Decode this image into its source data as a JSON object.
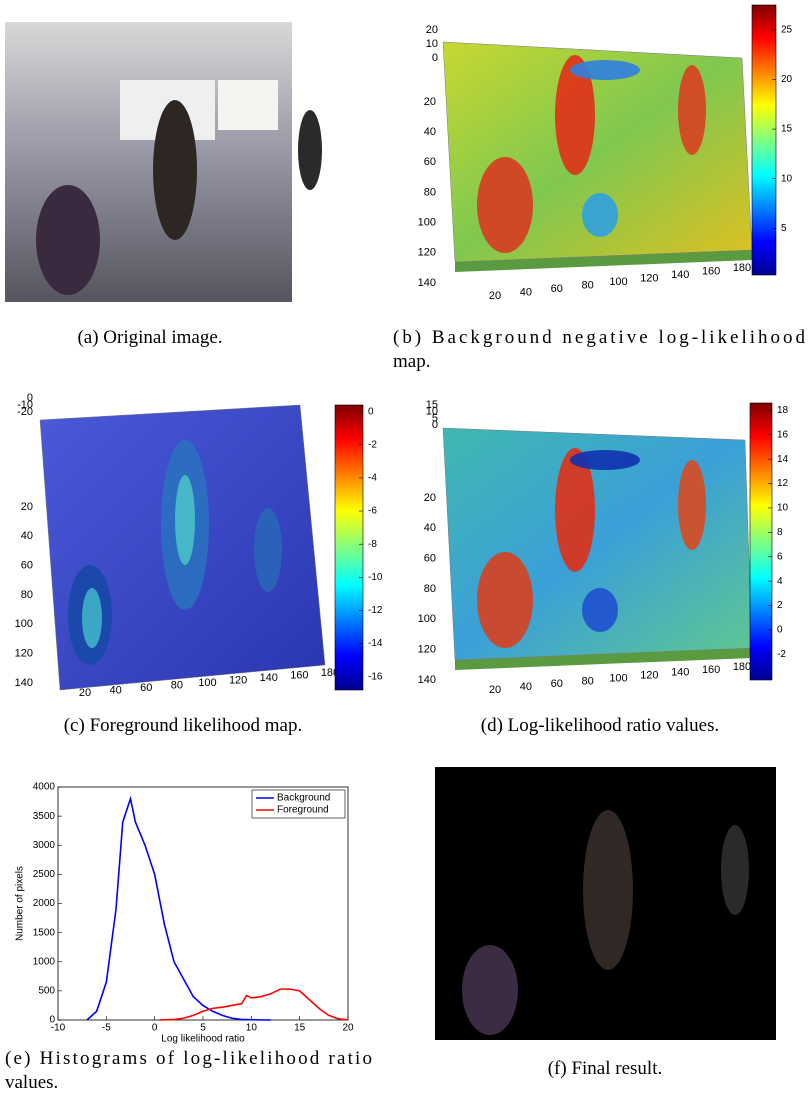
{
  "captions": [
    [
      "(a) Original image."
    ],
    [
      "(b) Background negative log-likelihood",
      "map."
    ],
    [
      "(c) Foreground likelihood map."
    ],
    [
      "(d) Log-likelihood ratio values."
    ],
    [
      "(e) Histograms of log-likelihood ratio",
      "values."
    ],
    [
      "(f) Final result."
    ]
  ],
  "surfaces": [
    {
      "zticks": [
        20,
        10,
        0
      ],
      "yticks": [
        20,
        40,
        60,
        80,
        100,
        120,
        140
      ],
      "xticks": [
        20,
        40,
        60,
        80,
        100,
        120,
        140,
        160,
        180
      ],
      "clim": [
        0.3,
        27.5
      ],
      "cticks": [
        5,
        10,
        15,
        20,
        25
      ]
    },
    {
      "zticks": [
        0,
        -10,
        -20
      ],
      "yticks": [
        20,
        40,
        60,
        80,
        100,
        120,
        140
      ],
      "xticks": [
        20,
        40,
        60,
        80,
        100,
        120,
        140,
        160,
        180
      ],
      "clim": [
        -16.8,
        0.4
      ],
      "cticks": [
        0,
        -2,
        -4,
        -6,
        -8,
        -10,
        -12,
        -14,
        -16
      ]
    },
    {
      "zticks": [
        15,
        10,
        5,
        0
      ],
      "yticks": [
        20,
        40,
        60,
        80,
        100,
        120,
        140
      ],
      "xticks": [
        20,
        40,
        60,
        80,
        100,
        120,
        140,
        160,
        180
      ],
      "clim": [
        -4.1,
        18.6
      ],
      "cticks": [
        18,
        16,
        14,
        12,
        10,
        8,
        6,
        4,
        2,
        0,
        -2
      ]
    }
  ],
  "chart_data": {
    "type": "line",
    "xlabel": "Log likelihood ratio",
    "ylabel": "Number of pixels",
    "xlim": [
      -10,
      20
    ],
    "ylim": [
      0,
      4000
    ],
    "xticks": [
      -10,
      -5,
      0,
      5,
      10,
      15,
      20
    ],
    "yticks": [
      0,
      500,
      1000,
      1500,
      2000,
      2500,
      3000,
      3500,
      4000
    ],
    "legend": "upper right",
    "series": [
      {
        "name": "Background",
        "color": "#0000ff",
        "x": [
          -7,
          -6,
          -5,
          -4,
          -3.3,
          -2.5,
          -2,
          -1,
          0,
          1,
          2,
          3,
          4,
          5,
          6,
          7,
          8,
          9,
          10,
          11,
          12
        ],
        "values": [
          0,
          150,
          650,
          1900,
          3400,
          3800,
          3400,
          3000,
          2500,
          1650,
          1000,
          700,
          400,
          250,
          150,
          80,
          30,
          10,
          5,
          2,
          0
        ]
      },
      {
        "name": "Foreground",
        "color": "#ff0000",
        "x": [
          0.5,
          2,
          3,
          4,
          5,
          6,
          7,
          8,
          9,
          9.5,
          10,
          11,
          12,
          13,
          14,
          15,
          16,
          17,
          18,
          19,
          20
        ],
        "values": [
          0,
          10,
          30,
          80,
          150,
          200,
          220,
          250,
          280,
          420,
          380,
          400,
          450,
          530,
          530,
          500,
          350,
          200,
          80,
          20,
          0
        ]
      }
    ]
  }
}
